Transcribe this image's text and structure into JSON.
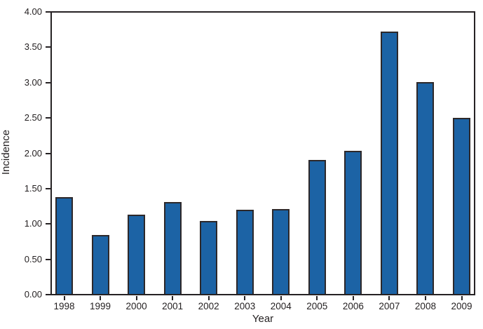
{
  "figure": {
    "background_color": "#ffffff",
    "text_color": "#231f20",
    "axis_color": "#262224"
  },
  "chart_data": {
    "type": "bar",
    "xlabel": "Year",
    "ylabel": "Incidence",
    "categories": [
      "1998",
      "1999",
      "2000",
      "2001",
      "2002",
      "2003",
      "2004",
      "2005",
      "2006",
      "2007",
      "2008",
      "2009"
    ],
    "values": [
      1.38,
      0.84,
      1.13,
      1.31,
      1.04,
      1.2,
      1.21,
      1.91,
      2.04,
      3.73,
      3.01,
      2.5
    ],
    "ylim": [
      0.0,
      4.0
    ],
    "ytick_labels": [
      "0.00",
      "0.50",
      "1.00",
      "1.50",
      "2.00",
      "2.50",
      "3.00",
      "3.50",
      "4.00"
    ],
    "grid": false,
    "bar_color": "#1C63A5",
    "bar_edge_color": "#2d282a",
    "layout": {
      "plot_box_border": true,
      "ticks_outside": true
    }
  }
}
